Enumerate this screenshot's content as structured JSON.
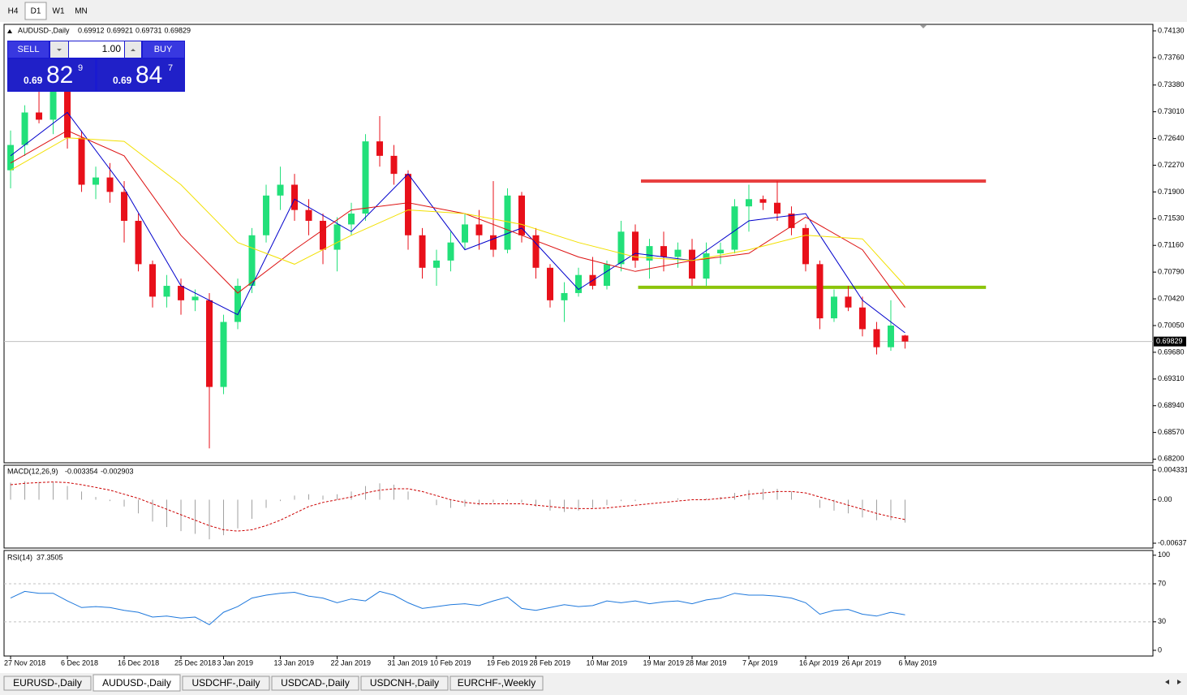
{
  "timeframe_tabs": [
    "H4",
    "D1",
    "W1",
    "MN"
  ],
  "active_timeframe_tab": 1,
  "symbol_tabs": [
    "EURUSD-,Daily",
    "AUDUSD-,Daily",
    "USDCHF-,Daily",
    "USDCAD-,Daily",
    "USDCNH-,Daily",
    "EURCHF-,Weekly"
  ],
  "active_symbol_tab": 1,
  "trade_panel": {
    "sell": "SELL",
    "buy": "BUY",
    "lots": "1.00",
    "bid": {
      "prefix": "0.69",
      "big": "82",
      "small": "9"
    },
    "ask": {
      "prefix": "0.69",
      "big": "84",
      "small": "7"
    }
  },
  "chart_data": [
    {
      "type": "candlestick",
      "title": "AUDUSD-,Daily",
      "up_color": "#22e07a",
      "down_color": "#e8101a",
      "xlim": [
        -0.46,
        80.46
      ],
      "ylim": [
        0.6815,
        0.7422
      ],
      "yticks": [
        {
          "value": 0.7413,
          "label": "0.74130"
        },
        {
          "value": 0.7376,
          "label": "0.73760"
        },
        {
          "value": 0.7338,
          "label": "0.73380"
        },
        {
          "value": 0.7301,
          "label": "0.73010"
        },
        {
          "value": 0.7264,
          "label": "0.72640"
        },
        {
          "value": 0.7227,
          "label": "0.72270"
        },
        {
          "value": 0.719,
          "label": "0.71900"
        },
        {
          "value": 0.7153,
          "label": "0.71530"
        },
        {
          "value": 0.7116,
          "label": "0.71160"
        },
        {
          "value": 0.7079,
          "label": "0.70790"
        },
        {
          "value": 0.7042,
          "label": "0.70420"
        },
        {
          "value": 0.7005,
          "label": "0.70050"
        },
        {
          "value": 0.6968,
          "label": "0.69680"
        },
        {
          "value": 0.6931,
          "label": "0.69310"
        },
        {
          "value": 0.6894,
          "label": "0.68940"
        },
        {
          "value": 0.6857,
          "label": "0.68570"
        },
        {
          "value": 0.682,
          "label": "0.68200"
        }
      ],
      "date_ticks": [
        {
          "value": 0,
          "label": "27 Nov 2018"
        },
        {
          "value": 4,
          "label": "6 Dec 2018"
        },
        {
          "value": 8,
          "label": "16 Dec 2018"
        },
        {
          "value": 12,
          "label": "25 Dec 2018"
        },
        {
          "value": 15,
          "label": "3 Jan 2019"
        },
        {
          "value": 19,
          "label": "13 Jan 2019"
        },
        {
          "value": 23,
          "label": "22 Jan 2019"
        },
        {
          "value": 27,
          "label": "31 Jan 2019"
        },
        {
          "value": 30,
          "label": "10 Feb 2019"
        },
        {
          "value": 34,
          "label": "19 Feb 2019"
        },
        {
          "value": 37,
          "label": "28 Feb 2019"
        },
        {
          "value": 41,
          "label": "10 Mar 2019"
        },
        {
          "value": 45,
          "label": "19 Mar 2019"
        },
        {
          "value": 48,
          "label": "28 Mar 2019"
        },
        {
          "value": 52,
          "label": "7 Apr 2019"
        },
        {
          "value": 56,
          "label": "16 Apr 2019"
        },
        {
          "value": 59,
          "label": "26 Apr 2019"
        },
        {
          "value": 63,
          "label": "6 May 2019"
        }
      ],
      "open": [
        0.722,
        0.7255,
        0.73,
        0.729,
        0.733,
        0.7265,
        0.72,
        0.721,
        0.719,
        0.715,
        0.709,
        0.7045,
        0.706,
        0.704,
        0.704,
        0.692,
        0.701,
        0.706,
        0.713,
        0.7185,
        0.72,
        0.7165,
        0.715,
        0.711,
        0.7145,
        0.716,
        0.726,
        0.724,
        0.7215,
        0.713,
        0.7085,
        0.7095,
        0.712,
        0.7145,
        0.713,
        0.711,
        0.7185,
        0.713,
        0.7085,
        0.704,
        0.705,
        0.7075,
        0.706,
        0.709,
        0.7135,
        0.7095,
        0.7115,
        0.71,
        0.711,
        0.707,
        0.7105,
        0.711,
        0.717,
        0.718,
        0.7175,
        0.716,
        0.714,
        0.709,
        0.7015,
        0.7045,
        0.703,
        0.7,
        0.6975,
        0.69912
      ],
      "high": [
        0.7275,
        0.731,
        0.7335,
        0.734,
        0.734,
        0.7275,
        0.7225,
        0.723,
        0.7205,
        0.716,
        0.7095,
        0.7075,
        0.707,
        0.7055,
        0.705,
        0.702,
        0.707,
        0.714,
        0.72,
        0.7225,
        0.7215,
        0.718,
        0.716,
        0.7155,
        0.7175,
        0.727,
        0.7295,
        0.7255,
        0.722,
        0.714,
        0.711,
        0.7135,
        0.716,
        0.7165,
        0.7205,
        0.7195,
        0.719,
        0.714,
        0.709,
        0.7065,
        0.7085,
        0.71,
        0.7095,
        0.715,
        0.7145,
        0.7125,
        0.7135,
        0.712,
        0.7125,
        0.712,
        0.712,
        0.718,
        0.72,
        0.7185,
        0.7205,
        0.717,
        0.7145,
        0.7095,
        0.7055,
        0.706,
        0.7045,
        0.701,
        0.704,
        0.69921
      ],
      "low": [
        0.7195,
        0.724,
        0.7285,
        0.727,
        0.725,
        0.719,
        0.718,
        0.7175,
        0.712,
        0.708,
        0.703,
        0.703,
        0.702,
        0.7025,
        0.6835,
        0.691,
        0.7,
        0.705,
        0.712,
        0.7165,
        0.715,
        0.713,
        0.709,
        0.708,
        0.713,
        0.715,
        0.7225,
        0.72,
        0.711,
        0.707,
        0.706,
        0.708,
        0.711,
        0.711,
        0.71,
        0.7105,
        0.712,
        0.707,
        0.703,
        0.701,
        0.7045,
        0.7055,
        0.7055,
        0.708,
        0.7085,
        0.707,
        0.708,
        0.7085,
        0.706,
        0.706,
        0.709,
        0.7105,
        0.7135,
        0.7165,
        0.715,
        0.713,
        0.708,
        0.7,
        0.701,
        0.7025,
        0.699,
        0.6965,
        0.697,
        0.69731
      ],
      "close": [
        0.7255,
        0.73,
        0.729,
        0.733,
        0.7265,
        0.72,
        0.721,
        0.719,
        0.715,
        0.709,
        0.7045,
        0.706,
        0.704,
        0.7045,
        0.692,
        0.701,
        0.706,
        0.713,
        0.7185,
        0.72,
        0.7165,
        0.715,
        0.711,
        0.7145,
        0.716,
        0.726,
        0.724,
        0.7215,
        0.713,
        0.7085,
        0.7095,
        0.712,
        0.7145,
        0.713,
        0.711,
        0.7185,
        0.713,
        0.7085,
        0.704,
        0.705,
        0.7075,
        0.706,
        0.709,
        0.7135,
        0.7095,
        0.7115,
        0.71,
        0.711,
        0.707,
        0.7105,
        0.711,
        0.717,
        0.718,
        0.7175,
        0.716,
        0.714,
        0.709,
        0.7015,
        0.7045,
        0.703,
        0.7,
        0.6975,
        0.7005,
        0.69829
      ],
      "moving_averages": [
        {
          "color": "#0000cc",
          "x": [
            0,
            4,
            8,
            12,
            16,
            20,
            24,
            28,
            32,
            36,
            40,
            44,
            48,
            52,
            56,
            60,
            63
          ],
          "values": [
            0.724,
            0.73,
            0.7195,
            0.706,
            0.702,
            0.718,
            0.7135,
            0.7215,
            0.711,
            0.714,
            0.7055,
            0.7105,
            0.7095,
            0.715,
            0.716,
            0.704,
            0.6995
          ]
        },
        {
          "color": "#dd1111",
          "x": [
            0,
            4,
            8,
            12,
            16,
            20,
            24,
            28,
            32,
            36,
            40,
            44,
            48,
            52,
            56,
            60,
            63
          ],
          "values": [
            0.723,
            0.7275,
            0.724,
            0.713,
            0.705,
            0.711,
            0.7165,
            0.7175,
            0.716,
            0.713,
            0.71,
            0.708,
            0.7095,
            0.7105,
            0.7155,
            0.711,
            0.703
          ]
        },
        {
          "color": "#f2e000",
          "x": [
            0,
            4,
            8,
            12,
            16,
            20,
            24,
            28,
            32,
            36,
            40,
            44,
            48,
            52,
            56,
            60,
            63
          ],
          "values": [
            0.722,
            0.7265,
            0.726,
            0.72,
            0.712,
            0.709,
            0.713,
            0.7165,
            0.716,
            0.7145,
            0.712,
            0.71,
            0.7095,
            0.711,
            0.713,
            0.7125,
            0.706
          ]
        }
      ],
      "levels": [
        {
          "value": 0.7205,
          "color": "#e84040",
          "x": [
            44.4,
            68.7
          ]
        },
        {
          "value": 0.7058,
          "color": "#8cc40a",
          "x": [
            44.2,
            68.7
          ]
        }
      ]
    },
    {
      "type": "macd",
      "title": "MACD(12,26,9)",
      "hist_color": "#a0a0a0",
      "signal_color": "#cc0000",
      "ylim": [
        -0.00708,
        0.00505
      ],
      "yticks": [
        0.004331,
        {
          "value": 0,
          "label": "0.00"
        },
        -0.006371
      ],
      "values": [
        0.0025,
        0.0027,
        0.0026,
        0.0026,
        0.002,
        0.0012,
        0.0004,
        -0.0002,
        -0.001,
        -0.002,
        -0.0032,
        -0.004,
        -0.0046,
        -0.005,
        -0.0058,
        -0.0052,
        -0.0042,
        -0.0028,
        -0.0012,
        -0.0002,
        0.0006,
        0.0008,
        0.0006,
        0.0008,
        0.0012,
        0.002,
        0.0024,
        0.0022,
        0.0012,
        0.0,
        -0.0008,
        -0.0012,
        -0.001,
        -0.0008,
        -0.0004,
        -0.0002,
        -0.0004,
        -0.001,
        -0.0016,
        -0.0018,
        -0.0016,
        -0.0012,
        -0.0008,
        -0.0002,
        -0.0002,
        0.0,
        0.0,
        0.0002,
        0.0,
        0.0002,
        0.0004,
        0.001,
        0.0014,
        0.0016,
        0.0016,
        0.0012,
        0.0,
        -0.0012,
        -0.0016,
        -0.002,
        -0.0026,
        -0.003,
        -0.003,
        -0.003354
      ],
      "signal": [
        0.0022,
        0.0024,
        0.0025,
        0.0026,
        0.0025,
        0.0022,
        0.0018,
        0.0014,
        0.0008,
        0.0002,
        -0.0006,
        -0.0014,
        -0.0022,
        -0.003,
        -0.0038,
        -0.0044,
        -0.0046,
        -0.0044,
        -0.0038,
        -0.003,
        -0.002,
        -0.001,
        -0.0004,
        0.0,
        0.0004,
        0.001,
        0.0014,
        0.0016,
        0.0016,
        0.0012,
        0.0006,
        0.0,
        -0.0004,
        -0.0006,
        -0.0006,
        -0.0006,
        -0.0006,
        -0.0008,
        -0.001,
        -0.0012,
        -0.0013,
        -0.0013,
        -0.0012,
        -0.001,
        -0.0008,
        -0.0006,
        -0.0004,
        -0.0002,
        0.0,
        0.0,
        0.0002,
        0.0004,
        0.0008,
        0.001,
        0.0012,
        0.0012,
        0.001,
        0.0004,
        -0.0002,
        -0.0008,
        -0.0014,
        -0.002,
        -0.0025,
        -0.002903
      ]
    },
    {
      "type": "line",
      "title": "RSI(14)",
      "color": "#1e78dc",
      "ylim": [
        -6,
        105
      ],
      "yticks": [
        0,
        30,
        70,
        100
      ],
      "levels": [
        30,
        70
      ],
      "values": [
        55,
        62,
        60,
        60,
        52,
        45,
        46,
        45,
        42,
        40,
        35,
        36,
        34,
        35,
        27,
        40,
        46,
        55,
        58,
        60,
        61,
        57,
        55,
        50,
        54,
        52,
        62,
        58,
        50,
        44,
        46,
        48,
        49,
        47,
        52,
        56,
        44,
        42,
        45,
        48,
        46,
        47,
        52,
        50,
        52,
        49,
        51,
        52,
        49,
        53,
        55,
        60,
        58,
        58,
        57,
        55,
        50,
        38,
        42,
        43,
        38,
        36,
        40,
        37.3505
      ]
    }
  ]
}
